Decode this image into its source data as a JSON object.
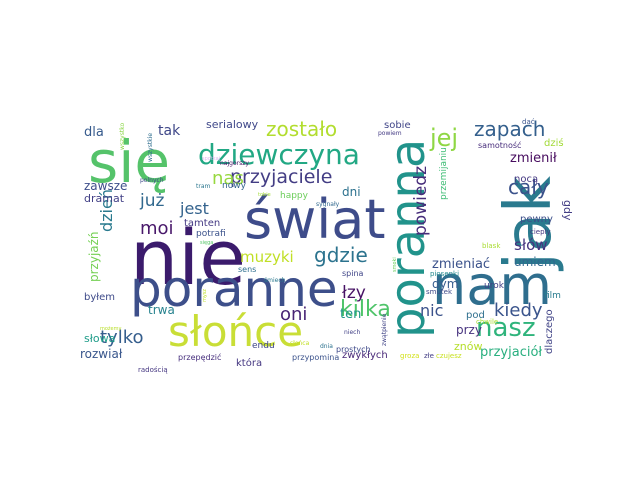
{
  "word_cloud": {
    "words": [
      {
        "text": "nie",
        "color": "#3b1b6c"
      },
      {
        "text": "się",
        "color": "#55c36a"
      },
      {
        "text": "poranne",
        "color": "#3d4f8a"
      },
      {
        "text": "świat",
        "color": "#3e4c8a"
      },
      {
        "text": "jak",
        "color": "#2a7a8e"
      },
      {
        "text": "nam",
        "color": "#2f6e8e"
      },
      {
        "text": "poranna",
        "color": "#21938b"
      },
      {
        "text": "słońce",
        "color": "#c9de36"
      },
      {
        "text": "dziewczyna",
        "color": "#22a884"
      },
      {
        "text": "nasz",
        "color": "#2fb47c"
      },
      {
        "text": "jej",
        "color": "#8fd744"
      },
      {
        "text": "zostało",
        "color": "#b2dd2f"
      },
      {
        "text": "zapach",
        "color": "#35608d"
      },
      {
        "text": "przyjaciele",
        "color": "#433d84"
      },
      {
        "text": "cały",
        "color": "#3b528b"
      },
      {
        "text": "kilka",
        "color": "#4fc46a"
      },
      {
        "text": "gdzie",
        "color": "#2c738e"
      },
      {
        "text": "nas",
        "color": "#97d83f"
      },
      {
        "text": "muzyki",
        "color": "#c0df25"
      },
      {
        "text": "powiedz",
        "color": "#472d7b"
      },
      {
        "text": "kiedy",
        "color": "#3a548c"
      },
      {
        "text": "tylko",
        "color": "#355e8d"
      },
      {
        "text": "moi",
        "color": "#48186a"
      },
      {
        "text": "już",
        "color": "#31688e"
      },
      {
        "text": "jest",
        "color": "#33628d"
      },
      {
        "text": "dzień",
        "color": "#297a8e"
      },
      {
        "text": "oni",
        "color": "#482475"
      },
      {
        "text": "łzy",
        "color": "#471365"
      },
      {
        "text": "nic",
        "color": "#3b528b"
      },
      {
        "text": "słów",
        "color": "#46337f"
      },
      {
        "text": "tak",
        "color": "#3f4788"
      },
      {
        "text": "dla",
        "color": "#375b8d"
      },
      {
        "text": "zmienił",
        "color": "#460b5e"
      },
      {
        "text": "zawsze",
        "color": "#3d4e8a"
      },
      {
        "text": "ten",
        "color": "#1f978b"
      },
      {
        "text": "umiem",
        "color": "#31678e"
      },
      {
        "text": "zmieniać",
        "color": "#3b528b"
      },
      {
        "text": "przyjaciół",
        "color": "#29af7f"
      },
      {
        "text": "serialowy",
        "color": "#3f4889"
      },
      {
        "text": "rozwiał",
        "color": "#39568c"
      },
      {
        "text": "przyjaźń",
        "color": "#75d054"
      },
      {
        "text": "dni",
        "color": "#2c718e"
      },
      {
        "text": "trwa",
        "color": "#26828e"
      },
      {
        "text": "przy",
        "color": "#46327e"
      },
      {
        "text": "znów",
        "color": "#b5de2b"
      },
      {
        "text": "dym",
        "color": "#365c8d"
      },
      {
        "text": "sobie",
        "color": "#404588"
      },
      {
        "text": "dramat",
        "color": "#424086"
      },
      {
        "text": "tamten",
        "color": "#443983"
      },
      {
        "text": "gdy",
        "color": "#433e85"
      },
      {
        "text": "słowa",
        "color": "#1e9c89"
      },
      {
        "text": "byłem",
        "color": "#3e4a89"
      },
      {
        "text": "zwykłych",
        "color": "#482878"
      },
      {
        "text": "dziś",
        "color": "#a2da37"
      },
      {
        "text": "nocą",
        "color": "#453882"
      },
      {
        "text": "pewny",
        "color": "#3c4f8a"
      },
      {
        "text": "pod",
        "color": "#2e6f8e"
      },
      {
        "text": "która",
        "color": "#453781"
      },
      {
        "text": "dlaczego",
        "color": "#414487"
      },
      {
        "text": "urok",
        "color": "#424186"
      },
      {
        "text": "film",
        "color": "#297b8e"
      },
      {
        "text": "potrafi",
        "color": "#3b528b"
      },
      {
        "text": "endu",
        "color": "#3f4788"
      },
      {
        "text": "nowy",
        "color": "#33638d"
      },
      {
        "text": "happy",
        "color": "#6ccd5a"
      },
      {
        "text": "sens",
        "color": "#2e6e8e"
      },
      {
        "text": "spina",
        "color": "#404688"
      },
      {
        "text": "przemijaniu",
        "color": "#3dbc74"
      },
      {
        "text": "przepędzić",
        "color": "#472f7d"
      },
      {
        "text": "przypomina",
        "color": "#3b528b"
      },
      {
        "text": "radością",
        "color": "#453781"
      },
      {
        "text": "prostych",
        "color": "#3e4989"
      },
      {
        "text": "samotność",
        "color": "#472d7b"
      },
      {
        "text": "dać",
        "color": "#3a548c"
      },
      {
        "text": "cieply",
        "color": "#453581"
      },
      {
        "text": "blask",
        "color": "#aadc32"
      },
      {
        "text": "smutek",
        "color": "#3e4989"
      },
      {
        "text": "chwile",
        "color": "#aadc32"
      },
      {
        "text": "piosenki",
        "color": "#23898e"
      },
      {
        "text": "złe",
        "color": "#433e85"
      },
      {
        "text": "czujesz",
        "color": "#c8e020"
      },
      {
        "text": "groza",
        "color": "#d2e21b"
      },
      {
        "text": "zwątpienie",
        "color": "#414487"
      },
      {
        "text": "śmiech",
        "color": "#2a788e"
      },
      {
        "text": "niech",
        "color": "#424086"
      },
      {
        "text": "dnia",
        "color": "#2c718e"
      },
      {
        "text": "sygnały",
        "color": "#31688e"
      },
      {
        "text": "słońca",
        "color": "#c2df23"
      },
      {
        "text": "tram",
        "color": "#2a768e"
      },
      {
        "text": "najgorszy",
        "color": "#471063"
      },
      {
        "text": "polnych",
        "color": "#3e4989"
      },
      {
        "text": "wszystko",
        "color": "#8bd646"
      },
      {
        "text": "wszystkie",
        "color": "#2e6d8e"
      },
      {
        "text": "powiem",
        "color": "#443b84"
      },
      {
        "text": "możemy",
        "color": "#b8de29"
      },
      {
        "text": "mysz",
        "color": "#bddf26"
      },
      {
        "text": "smoki",
        "color": "#6ccd5a"
      },
      {
        "text": "tobie",
        "color": "#a2da37"
      },
      {
        "text": "sięga",
        "color": "#55c667"
      },
      {
        "text": "spotkaj",
        "color": "#ddb7f0"
      }
    ]
  }
}
